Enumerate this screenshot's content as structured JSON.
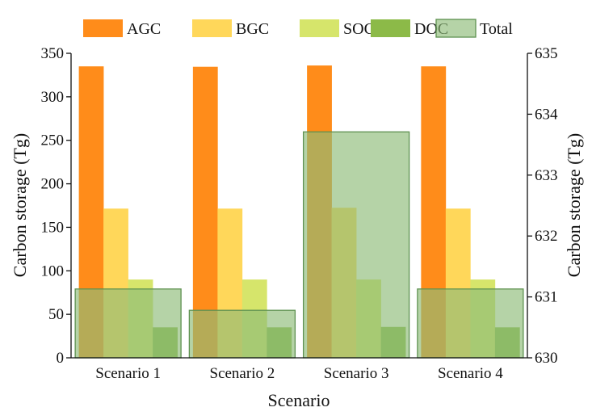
{
  "chart_data": {
    "type": "bar",
    "title": "",
    "xlabel": "Scenario",
    "ylabel": "Carbon storage (Tg)",
    "y2label": "Carbon storage (Tg)",
    "categories": [
      "Scenario 1",
      "Scenario 2",
      "Scenario 3",
      "Scenario 4"
    ],
    "ylim": [
      0,
      350
    ],
    "yticks": [
      0,
      50,
      100,
      150,
      200,
      250,
      300,
      350
    ],
    "y2lim": [
      630,
      635
    ],
    "y2ticks": [
      630,
      631,
      632,
      633,
      634,
      635
    ],
    "grid": false,
    "legend_position": "top",
    "series": [
      {
        "name": "AGC",
        "axis": "left",
        "color": "#FF8C1A",
        "values": [
          335,
          334.5,
          336,
          335
        ]
      },
      {
        "name": "BGC",
        "axis": "left",
        "color": "#FFD75A",
        "values": [
          171.5,
          171.5,
          172.5,
          171.5
        ]
      },
      {
        "name": "SOC",
        "axis": "left",
        "color": "#D6E56B",
        "values": [
          90,
          90,
          90,
          90
        ]
      },
      {
        "name": "DOC",
        "axis": "left",
        "color": "#8CBA48",
        "values": [
          35,
          35,
          35.5,
          35
        ]
      },
      {
        "name": "Total",
        "axis": "right",
        "color": "#8DBB78",
        "border": "#5E9150",
        "values": [
          631.13,
          630.78,
          633.71,
          631.13
        ]
      }
    ]
  }
}
